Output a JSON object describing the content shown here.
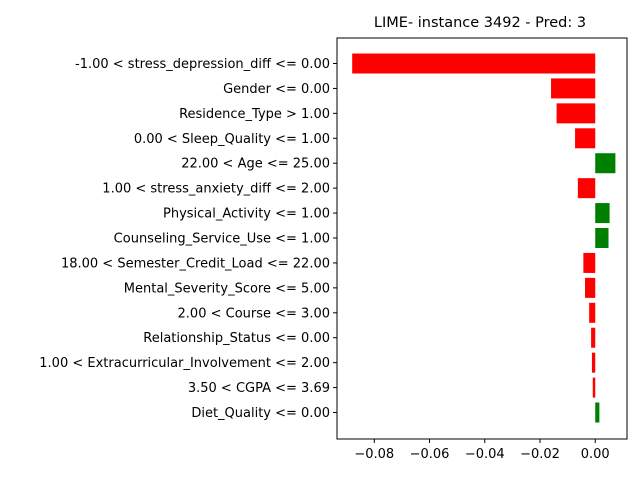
{
  "chart_data": {
    "type": "bar",
    "orientation": "horizontal",
    "title": "LIME- instance 3492 - Pred: 3",
    "xlabel": "",
    "ylabel": "",
    "xlim": [
      -0.0935,
      0.0115
    ],
    "xticks": [
      -0.08,
      -0.06,
      -0.04,
      -0.02,
      0.0
    ],
    "xtick_labels": [
      "−0.08",
      "−0.06",
      "−0.04",
      "−0.02",
      "0.00"
    ],
    "grid": false,
    "colors": {
      "negative": "#ff0000",
      "positive": "#008000"
    },
    "categories": [
      "-1.00 < stress_depression_diff <= 0.00",
      "Gender <= 0.00",
      "Residence_Type > 1.00",
      "0.00 < Sleep_Quality <= 1.00",
      "22.00 < Age <= 25.00",
      "1.00 < stress_anxiety_diff <= 2.00",
      "Physical_Activity <= 1.00",
      "Counseling_Service_Use <= 1.00",
      "18.00 < Semester_Credit_Load <= 22.00",
      "Mental_Severity_Score <= 5.00",
      "2.00 < Course <= 3.00",
      "Relationship_Status <= 0.00",
      "1.00 < Extracurricular_Involvement <= 2.00",
      "3.50 < CGPA <= 3.69",
      "Diet_Quality <= 0.00"
    ],
    "values": [
      -0.088,
      -0.016,
      -0.014,
      -0.0073,
      0.0073,
      -0.0063,
      0.0052,
      0.0048,
      -0.0043,
      -0.0037,
      -0.0022,
      -0.0015,
      -0.0012,
      -0.0009,
      0.0015
    ]
  }
}
